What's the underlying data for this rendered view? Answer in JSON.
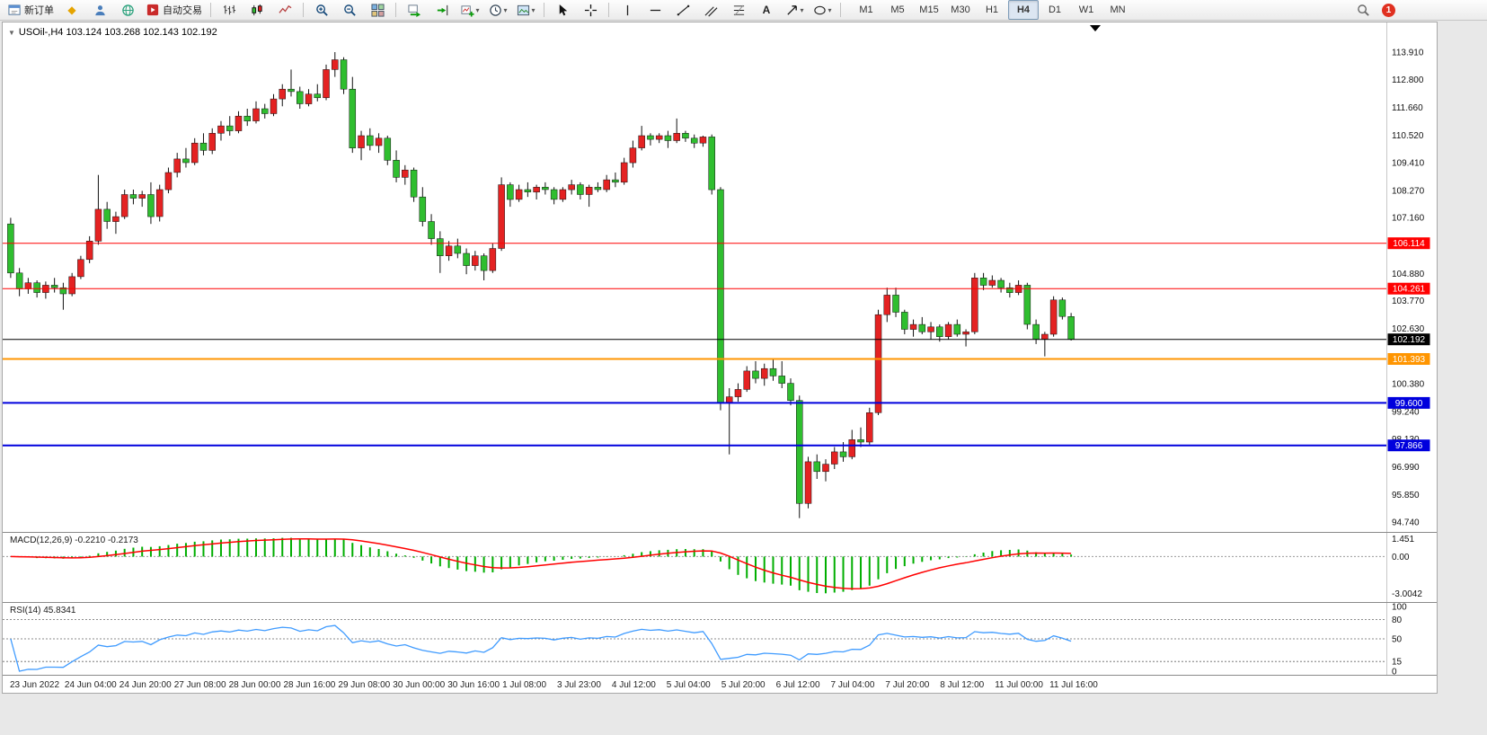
{
  "toolbar": {
    "new_order": "新订单",
    "autotrading": "自动交易",
    "timeframes": [
      "M1",
      "M5",
      "M15",
      "M30",
      "H1",
      "H4",
      "D1",
      "W1",
      "MN"
    ],
    "active_timeframe": "H4",
    "badge": "1"
  },
  "chart": {
    "title": "USOil-,H4 103.124 103.268 102.143 102.192"
  },
  "chart_data": {
    "type": "candlestick",
    "symbol": "USOil-",
    "timeframe": "H4",
    "ohlc_current": {
      "open": 103.124,
      "high": 103.268,
      "low": 102.143,
      "close": 102.192
    },
    "price_ticks": [
      "113.910",
      "112.800",
      "111.660",
      "110.520",
      "109.410",
      "108.270",
      "107.160",
      "106.020",
      "104.880",
      "103.770",
      "102.630",
      "101.490",
      "100.380",
      "99.240",
      "98.130",
      "96.990",
      "95.850",
      "94.740"
    ],
    "time_labels": [
      "23 Jun 2022",
      "24 Jun 04:00",
      "24 Jun 20:00",
      "27 Jun 08:00",
      "28 Jun 00:00",
      "28 Jun 16:00",
      "29 Jun 08:00",
      "30 Jun 00:00",
      "30 Jun 16:00",
      "1 Jul 08:00",
      "3 Jul 23:00",
      "4 Jul 12:00",
      "5 Jul 04:00",
      "5 Jul 20:00",
      "6 Jul 12:00",
      "7 Jul 04:00",
      "7 Jul 20:00",
      "8 Jul 12:00",
      "11 Jul 00:00",
      "11 Jul 16:00"
    ],
    "hlines": [
      {
        "value": 106.114,
        "label": "106.114",
        "color": "#ff0000",
        "width": 1
      },
      {
        "value": 104.261,
        "label": "104.261",
        "color": "#ff0000",
        "width": 1
      },
      {
        "value": 102.192,
        "label": "102.192",
        "color": "#000000",
        "width": 1
      },
      {
        "value": 101.393,
        "label": "101.393",
        "color": "#ff9500",
        "width": 2
      },
      {
        "value": 99.6,
        "label": "99.600",
        "color": "#0000dd",
        "width": 2
      },
      {
        "value": 97.866,
        "label": "97.866",
        "color": "#0000dd",
        "width": 2
      }
    ],
    "candles": [
      [
        106.9,
        107.15,
        104.7,
        104.9
      ],
      [
        104.9,
        105.1,
        103.95,
        104.25
      ],
      [
        104.25,
        104.7,
        104.05,
        104.5
      ],
      [
        104.5,
        104.6,
        103.9,
        104.1
      ],
      [
        104.1,
        104.55,
        103.85,
        104.4
      ],
      [
        104.4,
        104.7,
        104.1,
        104.3
      ],
      [
        104.3,
        104.5,
        103.4,
        104.05
      ],
      [
        104.05,
        104.9,
        103.95,
        104.75
      ],
      [
        104.75,
        105.6,
        104.65,
        105.45
      ],
      [
        105.45,
        106.4,
        105.3,
        106.2
      ],
      [
        106.2,
        108.9,
        106.05,
        107.5
      ],
      [
        107.5,
        107.8,
        106.7,
        107.0
      ],
      [
        107.0,
        107.4,
        106.5,
        107.2
      ],
      [
        107.2,
        108.3,
        107.1,
        108.1
      ],
      [
        108.1,
        108.3,
        107.7,
        107.95
      ],
      [
        107.95,
        108.25,
        107.6,
        108.1
      ],
      [
        108.1,
        108.6,
        106.9,
        107.2
      ],
      [
        107.2,
        108.5,
        107.0,
        108.3
      ],
      [
        108.3,
        109.2,
        108.15,
        109.0
      ],
      [
        109.0,
        109.8,
        108.8,
        109.55
      ],
      [
        109.55,
        110.0,
        109.2,
        109.4
      ],
      [
        109.4,
        110.4,
        109.3,
        110.2
      ],
      [
        110.2,
        110.6,
        109.7,
        109.9
      ],
      [
        109.9,
        110.8,
        109.75,
        110.6
      ],
      [
        110.6,
        111.1,
        110.3,
        110.9
      ],
      [
        110.9,
        111.3,
        110.5,
        110.7
      ],
      [
        110.7,
        111.5,
        110.6,
        111.3
      ],
      [
        111.3,
        111.6,
        110.9,
        111.1
      ],
      [
        111.1,
        111.9,
        111.0,
        111.6
      ],
      [
        111.6,
        111.8,
        111.2,
        111.4
      ],
      [
        111.4,
        112.2,
        111.3,
        112.0
      ],
      [
        112.0,
        112.6,
        111.7,
        112.4
      ],
      [
        112.4,
        113.2,
        112.1,
        112.3
      ],
      [
        112.3,
        112.5,
        111.6,
        111.8
      ],
      [
        111.8,
        112.4,
        111.7,
        112.2
      ],
      [
        112.2,
        112.6,
        111.9,
        112.05
      ],
      [
        112.05,
        113.4,
        111.95,
        113.2
      ],
      [
        113.2,
        113.91,
        112.9,
        113.6
      ],
      [
        113.6,
        113.7,
        112.2,
        112.4
      ],
      [
        112.4,
        112.9,
        109.8,
        110.0
      ],
      [
        110.0,
        110.7,
        109.5,
        110.5
      ],
      [
        110.5,
        110.8,
        109.9,
        110.1
      ],
      [
        110.1,
        110.6,
        109.8,
        110.4
      ],
      [
        110.4,
        110.5,
        109.3,
        109.5
      ],
      [
        109.5,
        109.9,
        108.6,
        108.8
      ],
      [
        108.8,
        109.3,
        108.5,
        109.1
      ],
      [
        109.1,
        109.2,
        107.8,
        108.0
      ],
      [
        108.0,
        108.4,
        106.8,
        107.0
      ],
      [
        107.0,
        107.3,
        106.05,
        106.3
      ],
      [
        106.3,
        106.6,
        104.9,
        105.6
      ],
      [
        105.6,
        106.2,
        105.4,
        106.0
      ],
      [
        106.0,
        106.3,
        105.5,
        105.7
      ],
      [
        105.7,
        105.9,
        104.85,
        105.2
      ],
      [
        105.2,
        105.8,
        105.0,
        105.6
      ],
      [
        105.6,
        105.7,
        104.6,
        105.0
      ],
      [
        105.0,
        106.1,
        104.9,
        105.9
      ],
      [
        105.9,
        108.8,
        105.8,
        108.5
      ],
      [
        108.5,
        108.6,
        107.6,
        107.9
      ],
      [
        107.9,
        108.5,
        107.8,
        108.3
      ],
      [
        108.3,
        108.6,
        108.0,
        108.2
      ],
      [
        108.2,
        108.5,
        107.9,
        108.4
      ],
      [
        108.4,
        108.6,
        108.1,
        108.3
      ],
      [
        108.3,
        108.4,
        107.7,
        107.9
      ],
      [
        107.9,
        108.4,
        107.8,
        108.3
      ],
      [
        108.3,
        108.7,
        108.1,
        108.5
      ],
      [
        108.5,
        108.6,
        107.9,
        108.1
      ],
      [
        108.1,
        108.5,
        107.6,
        108.4
      ],
      [
        108.4,
        108.6,
        108.2,
        108.3
      ],
      [
        108.3,
        108.9,
        108.2,
        108.7
      ],
      [
        108.7,
        109.0,
        108.4,
        108.6
      ],
      [
        108.6,
        109.6,
        108.5,
        109.4
      ],
      [
        109.4,
        110.3,
        109.2,
        110.0
      ],
      [
        110.0,
        110.9,
        109.9,
        110.5
      ],
      [
        110.5,
        110.6,
        110.1,
        110.35
      ],
      [
        110.35,
        110.6,
        110.2,
        110.5
      ],
      [
        110.5,
        110.7,
        110.0,
        110.3
      ],
      [
        110.3,
        111.2,
        110.2,
        110.6
      ],
      [
        110.6,
        110.7,
        110.25,
        110.4
      ],
      [
        110.4,
        110.55,
        110.0,
        110.2
      ],
      [
        110.2,
        110.5,
        110.05,
        110.45
      ],
      [
        110.45,
        110.55,
        108.1,
        108.3
      ],
      [
        108.3,
        108.4,
        99.3,
        99.6
      ],
      [
        99.6,
        100.2,
        97.5,
        99.85
      ],
      [
        99.85,
        100.4,
        99.65,
        100.15
      ],
      [
        100.15,
        101.1,
        100.05,
        100.9
      ],
      [
        100.9,
        101.3,
        100.4,
        100.6
      ],
      [
        100.6,
        101.2,
        100.3,
        101.0
      ],
      [
        101.0,
        101.4,
        100.5,
        100.7
      ],
      [
        100.7,
        101.3,
        100.2,
        100.4
      ],
      [
        100.4,
        100.6,
        99.5,
        99.7
      ],
      [
        99.7,
        99.9,
        94.9,
        95.5
      ],
      [
        95.5,
        97.4,
        95.3,
        97.2
      ],
      [
        97.2,
        97.5,
        96.5,
        96.8
      ],
      [
        96.8,
        97.3,
        96.4,
        97.1
      ],
      [
        97.1,
        97.8,
        96.9,
        97.6
      ],
      [
        97.6,
        98.0,
        97.2,
        97.4
      ],
      [
        97.4,
        98.5,
        97.3,
        98.1
      ],
      [
        98.1,
        98.6,
        97.8,
        98.0
      ],
      [
        98.0,
        99.4,
        97.9,
        99.2
      ],
      [
        99.2,
        103.4,
        99.1,
        103.2
      ],
      [
        103.2,
        104.3,
        102.9,
        104.0
      ],
      [
        104.0,
        104.3,
        103.1,
        103.3
      ],
      [
        103.3,
        103.4,
        102.4,
        102.6
      ],
      [
        102.6,
        103.0,
        102.3,
        102.8
      ],
      [
        102.8,
        103.1,
        102.4,
        102.5
      ],
      [
        102.5,
        102.9,
        102.2,
        102.7
      ],
      [
        102.7,
        102.8,
        102.1,
        102.3
      ],
      [
        102.3,
        102.9,
        102.2,
        102.8
      ],
      [
        102.8,
        103.0,
        102.3,
        102.4
      ],
      [
        102.4,
        102.6,
        101.9,
        102.5
      ],
      [
        102.5,
        104.9,
        102.4,
        104.7
      ],
      [
        104.7,
        104.9,
        104.2,
        104.4
      ],
      [
        104.4,
        104.8,
        104.3,
        104.6
      ],
      [
        104.6,
        104.7,
        104.1,
        104.3
      ],
      [
        104.3,
        104.5,
        103.9,
        104.1
      ],
      [
        104.1,
        104.6,
        104.0,
        104.4
      ],
      [
        104.4,
        104.5,
        102.6,
        102.8
      ],
      [
        102.8,
        103.0,
        102.0,
        102.2
      ],
      [
        102.2,
        102.5,
        101.5,
        102.4
      ],
      [
        102.4,
        103.95,
        102.3,
        103.8
      ],
      [
        103.8,
        103.9,
        103.0,
        103.124
      ],
      [
        103.124,
        103.268,
        102.143,
        102.192
      ]
    ],
    "macd": {
      "label": "MACD(12,26,9) -0.2210 -0.2173",
      "fast": 12,
      "slow": 26,
      "signal_period": 9,
      "value": -0.221,
      "signal_value": -0.2173,
      "axis": [
        {
          "text": "1.451",
          "v": 1.451
        },
        {
          "text": "0.00",
          "v": 0
        },
        {
          "text": "-3.0042",
          "v": -3.0042
        }
      ]
    },
    "rsi": {
      "label": "RSI(14) 45.8341",
      "period": 14,
      "value": 45.8341,
      "axis": [
        {
          "text": "100",
          "v": 100
        },
        {
          "text": "80",
          "v": 80
        },
        {
          "text": "50",
          "v": 50
        },
        {
          "text": "15",
          "v": 15
        },
        {
          "text": "0",
          "v": 0
        }
      ],
      "dashed_levels": [
        80,
        50,
        15
      ]
    },
    "colors": {
      "up": "#e42222",
      "down": "#2fbe2f",
      "wick": "#111111",
      "macd_hist": "#00ae00",
      "macd_signal": "#ff0000",
      "rsi_line": "#3f9bff",
      "current_price_bg": "#000000"
    }
  }
}
